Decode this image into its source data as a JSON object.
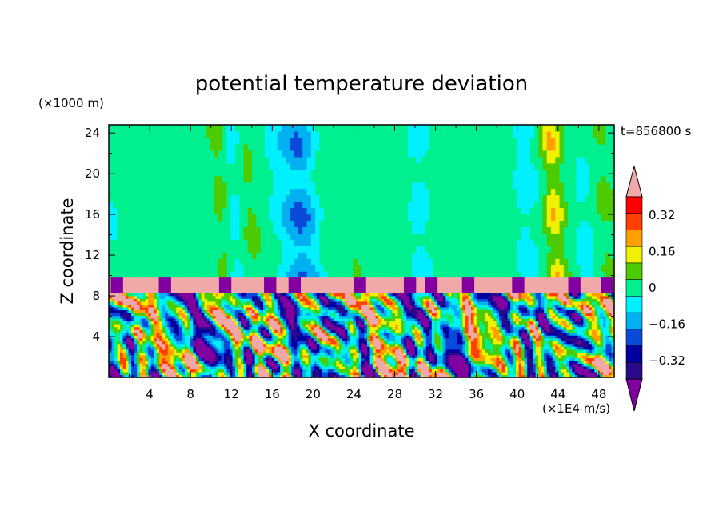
{
  "chart_data": {
    "type": "heatmap",
    "title": "potential temperature deviation",
    "xlabel": "X coordinate",
    "ylabel": "Z coordinate",
    "x_unit": "(×1E4 m/s)",
    "y_unit": "(×1000 m)",
    "time_label": "t=856800 s",
    "xlim": [
      0,
      49.5
    ],
    "ylim": [
      0,
      24.8
    ],
    "x_ticks": [
      4,
      8,
      12,
      16,
      20,
      24,
      28,
      32,
      36,
      40,
      44,
      48
    ],
    "y_ticks": [
      4,
      8,
      12,
      16,
      20,
      24
    ],
    "colorbar": {
      "levels": [
        -0.4,
        -0.32,
        -0.24,
        -0.16,
        -0.08,
        0,
        0.08,
        0.16,
        0.24,
        0.32,
        0.4
      ],
      "labels": [
        "0.32",
        "0.16",
        "0",
        "−0.16",
        "−0.32"
      ],
      "label_values": [
        0.32,
        0.16,
        0,
        -0.16,
        -0.32
      ],
      "colors": [
        "#2b0a8a",
        "#0000a0",
        "#0a4ad8",
        "#00b0f0",
        "#00f0ff",
        "#00f090",
        "#4ccc00",
        "#f0f000",
        "#ffa000",
        "#ff4000",
        "#ff0000"
      ],
      "under_color": "#8000a0",
      "over_color": "#f0a8a8"
    },
    "description_layers": [
      {
        "z_range": [
          9.8,
          24.8
        ],
        "field": "near-zero background with vertical plumes"
      },
      {
        "z_range": [
          8.3,
          9.8
        ],
        "field": "positive band above 0.4"
      },
      {
        "z_range": [
          0,
          8.3
        ],
        "field": "turbulent mixed layer"
      }
    ]
  }
}
